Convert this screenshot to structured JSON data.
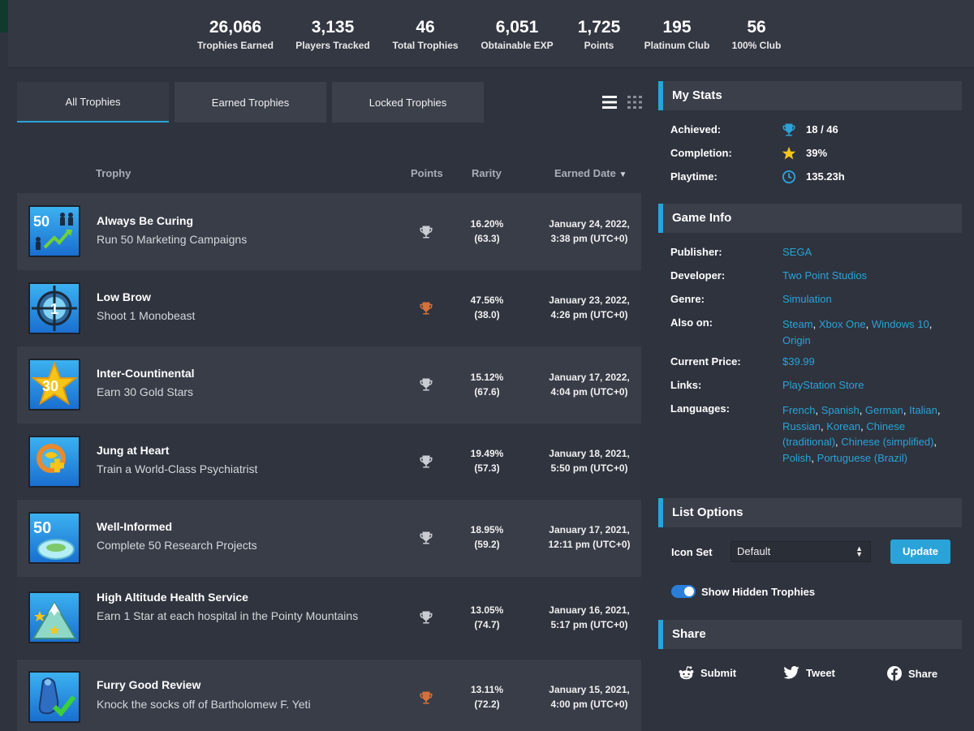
{
  "stats": [
    {
      "value": "26,066",
      "label": "Trophies Earned"
    },
    {
      "value": "3,135",
      "label": "Players Tracked"
    },
    {
      "value": "46",
      "label": "Total Trophies"
    },
    {
      "value": "6,051",
      "label": "Obtainable EXP"
    },
    {
      "value": "1,725",
      "label": "Points"
    },
    {
      "value": "195",
      "label": "Platinum Club"
    },
    {
      "value": "56",
      "label": "100% Club"
    }
  ],
  "tabs": [
    "All Trophies",
    "Earned Trophies",
    "Locked Trophies"
  ],
  "columns": {
    "trophy": "Trophy",
    "points": "Points",
    "rarity": "Rarity",
    "earned_date": "Earned Date"
  },
  "trophies": [
    {
      "name": "Always Be Curing",
      "desc": "Run 50 Marketing Campaigns",
      "grade": "silver",
      "rarity": "16.20%",
      "rarity_pts": "(63.3)",
      "date": "January 24, 2022,",
      "time": "3:38 pm (UTC+0)"
    },
    {
      "name": "Low Brow",
      "desc": "Shoot 1 Monobeast",
      "grade": "bronze",
      "rarity": "47.56%",
      "rarity_pts": "(38.0)",
      "date": "January 23, 2022,",
      "time": "4:26 pm (UTC+0)"
    },
    {
      "name": "Inter-Countinental",
      "desc": "Earn 30 Gold Stars",
      "grade": "silver",
      "rarity": "15.12%",
      "rarity_pts": "(67.6)",
      "date": "January 17, 2022,",
      "time": "4:04 pm (UTC+0)"
    },
    {
      "name": "Jung at Heart",
      "desc": "Train a World-Class Psychiatrist",
      "grade": "silver",
      "rarity": "19.49%",
      "rarity_pts": "(57.3)",
      "date": "January 18, 2021,",
      "time": "5:50 pm (UTC+0)"
    },
    {
      "name": "Well-Informed",
      "desc": "Complete 50 Research Projects",
      "grade": "silver",
      "rarity": "18.95%",
      "rarity_pts": "(59.2)",
      "date": "January 17, 2021,",
      "time": "12:11 pm (UTC+0)"
    },
    {
      "name": "High Altitude Health Service",
      "desc": "Earn 1 Star at each hospital in the Pointy Mountains",
      "grade": "silver",
      "rarity": "13.05%",
      "rarity_pts": "(74.7)",
      "date": "January 16, 2021,",
      "time": "5:17 pm (UTC+0)"
    },
    {
      "name": "Furry Good Review",
      "desc": "Knock the socks off of Bartholomew F. Yeti",
      "grade": "bronze",
      "rarity": "13.11%",
      "rarity_pts": "(72.2)",
      "date": "January 15, 2021,",
      "time": "4:00 pm (UTC+0)"
    }
  ],
  "my_stats": {
    "title": "My Stats",
    "achieved_label": "Achieved:",
    "achieved": "18 / 46",
    "completion_label": "Completion:",
    "completion": "39%",
    "playtime_label": "Playtime:",
    "playtime": "135.23h"
  },
  "game_info": {
    "title": "Game Info",
    "publisher_label": "Publisher:",
    "publisher": "SEGA",
    "developer_label": "Developer:",
    "developer": "Two Point Studios",
    "genre_label": "Genre:",
    "genre": "Simulation",
    "also_on_label": "Also on:",
    "also_on": [
      "Steam",
      "Xbox One",
      "Windows 10",
      "Origin"
    ],
    "price_label": "Current Price:",
    "price": "$39.99",
    "links_label": "Links:",
    "links": "PlayStation Store",
    "languages_label": "Languages:",
    "languages": [
      "French",
      "Spanish",
      "German",
      "Italian",
      "Russian",
      "Korean",
      "Chinese (traditional)",
      "Chinese (simplified)",
      "Polish",
      "Portuguese (Brazil)"
    ]
  },
  "list_options": {
    "title": "List Options",
    "icon_set_label": "Icon Set",
    "icon_set_value": "Default",
    "update_label": "Update",
    "hidden_label": "Show Hidden Trophies"
  },
  "share": {
    "title": "Share",
    "submit": "Submit",
    "tweet": "Tweet",
    "share": "Share"
  },
  "colors": {
    "accent": "#2aa3d8",
    "silver": "#c9ccd2",
    "bronze": "#d4703a",
    "gold": "#f5c518"
  },
  "icons": [
    "list-view-icon",
    "grid-view-icon",
    "sort-desc-icon",
    "trophy-icon",
    "star-icon",
    "clock-icon",
    "reddit-icon",
    "twitter-icon",
    "facebook-icon"
  ]
}
